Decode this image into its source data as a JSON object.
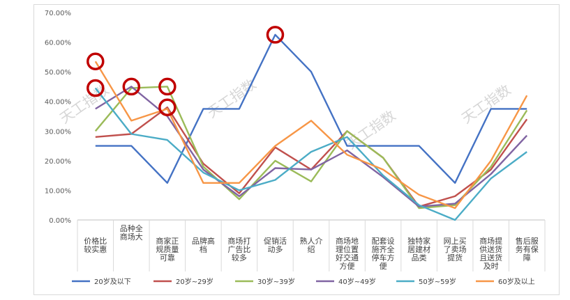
{
  "chart_data": {
    "type": "line",
    "title": "",
    "xlabel": "",
    "ylabel": "",
    "ylim": [
      0,
      70
    ],
    "yticks": [
      "0.00%",
      "10.00%",
      "20.00%",
      "30.00%",
      "40.00%",
      "50.00%",
      "60.00%",
      "70.00%"
    ],
    "grid": false,
    "legend_position": "bottom",
    "categories": [
      [
        "价格比",
        "较实惠"
      ],
      [
        "品种全",
        "商场大"
      ],
      [
        "商家正",
        "规质量",
        "可靠"
      ],
      [
        "品牌高",
        "档"
      ],
      [
        "商场打",
        "广告比",
        "较多"
      ],
      [
        "促销活",
        "动多"
      ],
      [
        "熟人介",
        "绍"
      ],
      [
        "商场地",
        "理位置",
        "好交通",
        "方便"
      ],
      [
        "配套设",
        "施齐全",
        "停车方",
        "便"
      ],
      [
        "独特家",
        "居建材",
        "品类"
      ],
      [
        "网上买",
        "了卖场",
        "提货"
      ],
      [
        "商场提",
        "供送货",
        "且送货",
        "及时"
      ],
      [
        "售后服",
        "务有保",
        "障"
      ]
    ],
    "series": [
      {
        "name": "20岁及以下",
        "color": "#4472C4",
        "values": [
          25,
          25,
          12.5,
          37.5,
          37.5,
          62.5,
          50,
          25,
          25,
          25,
          12.5,
          37.5,
          37.5
        ]
      },
      {
        "name": "20岁~29岁",
        "color": "#C0504D",
        "values": [
          28,
          29,
          38,
          19,
          9,
          24.5,
          17,
          30,
          21,
          4.5,
          8,
          17,
          34
        ]
      },
      {
        "name": "30岁~39岁",
        "color": "#9BBB59",
        "values": [
          30,
          44.5,
          45,
          18,
          7,
          20,
          13,
          30,
          21,
          4,
          5,
          18,
          37
        ]
      },
      {
        "name": "40岁~49岁",
        "color": "#8064A2",
        "values": [
          37.5,
          45,
          35,
          17,
          8,
          17.5,
          17,
          23.5,
          14.5,
          4.5,
          5.5,
          15.5,
          28.5
        ]
      },
      {
        "name": "50岁~59岁",
        "color": "#4BACC6",
        "values": [
          44.5,
          29,
          27,
          16,
          10,
          13.5,
          23,
          28,
          15,
          5,
          0,
          14,
          23
        ]
      },
      {
        "name": "60岁及以上",
        "color": "#F79646",
        "values": [
          53.5,
          33.5,
          37.5,
          12.5,
          12.5,
          25,
          33.5,
          22,
          17,
          8.5,
          4,
          20,
          42
        ]
      }
    ],
    "annotations": [
      {
        "series": 5,
        "index": 0
      },
      {
        "series": 4,
        "index": 0
      },
      {
        "series": 3,
        "index": 1
      },
      {
        "series": 2,
        "index": 2
      },
      {
        "series": 1,
        "index": 2
      },
      {
        "series": 0,
        "index": 5
      }
    ],
    "annotation_color": "#C00000"
  },
  "watermark": "天工指数"
}
